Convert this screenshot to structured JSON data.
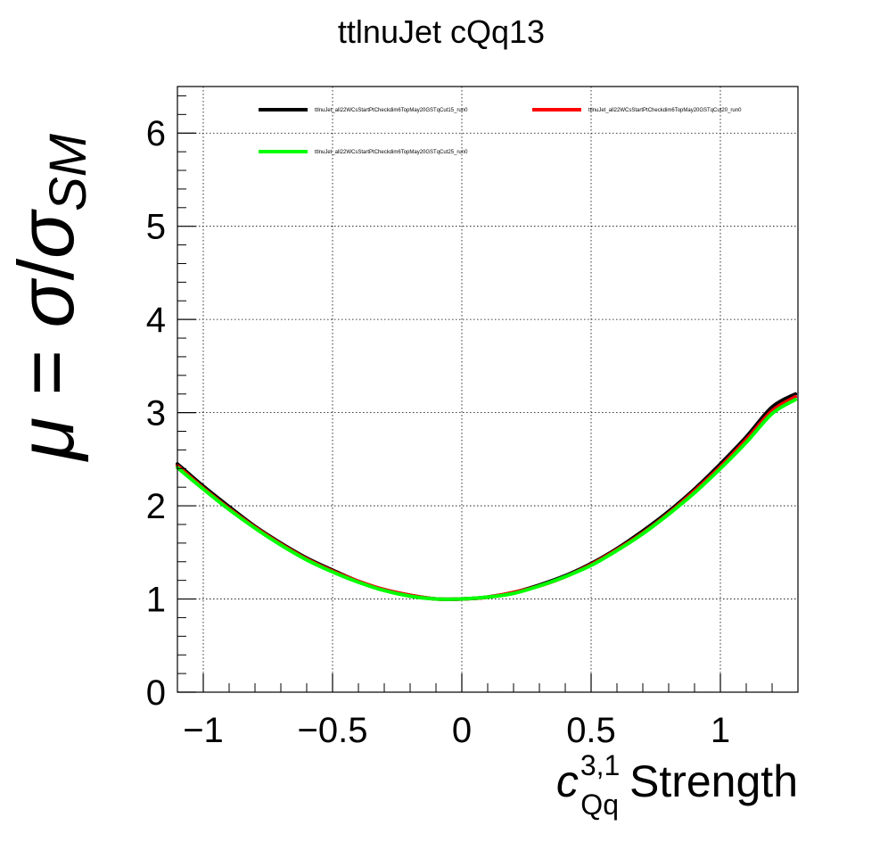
{
  "chart_data": {
    "type": "line",
    "title": "ttlnuJet cQq13",
    "xlabel": {
      "symbol": "c",
      "superscript": "3,1",
      "subscript": "Qq",
      "text": "Strength"
    },
    "ylabel": {
      "mu": "μ",
      "equals": " = ",
      "sigma": "σ",
      "slash": "/",
      "sigma_sm": "σ",
      "subscript": "SM"
    },
    "xlim": [
      -1.1,
      1.3
    ],
    "ylim": [
      0,
      6.5
    ],
    "x_ticks": [
      {
        "value": -1,
        "label": "−1"
      },
      {
        "value": -0.5,
        "label": "−0.5"
      },
      {
        "value": 0,
        "label": "0"
      },
      {
        "value": 0.5,
        "label": "0.5"
      },
      {
        "value": 1,
        "label": "1"
      }
    ],
    "y_ticks": [
      {
        "value": 0,
        "label": "0"
      },
      {
        "value": 1,
        "label": "1"
      },
      {
        "value": 2,
        "label": "2"
      },
      {
        "value": 3,
        "label": "3"
      },
      {
        "value": 4,
        "label": "4"
      },
      {
        "value": 5,
        "label": "5"
      },
      {
        "value": 6,
        "label": "6"
      }
    ],
    "grid": true,
    "legend_position": "top",
    "series": [
      {
        "name": "ttlnuJet_all22WCsStartPtCheckdim6TopMay20GSTqCut15_run0",
        "color": "#000000",
        "x": [
          -1.1,
          -1.0,
          -0.9,
          -0.8,
          -0.7,
          -0.6,
          -0.5,
          -0.4,
          -0.3,
          -0.2,
          -0.1,
          0.0,
          0.1,
          0.2,
          0.3,
          0.4,
          0.5,
          0.6,
          0.7,
          0.8,
          0.9,
          1.0,
          1.1,
          1.2,
          1.29
        ],
        "y": [
          2.45,
          2.21,
          1.99,
          1.78,
          1.6,
          1.44,
          1.31,
          1.19,
          1.1,
          1.04,
          1.0,
          1.0,
          1.02,
          1.07,
          1.15,
          1.25,
          1.38,
          1.54,
          1.73,
          1.94,
          2.18,
          2.45,
          2.74,
          3.06,
          3.2
        ]
      },
      {
        "name": "ttlnuJet_all22WCsStartPtCheckdim6TopMay20GSTqCut20_run0",
        "color": "#ff0000",
        "x": [
          -1.1,
          -1.0,
          -0.9,
          -0.8,
          -0.7,
          -0.6,
          -0.5,
          -0.4,
          -0.3,
          -0.2,
          -0.1,
          0.0,
          0.1,
          0.2,
          0.3,
          0.4,
          0.5,
          0.6,
          0.7,
          0.8,
          0.9,
          1.0,
          1.1,
          1.2,
          1.29
        ],
        "y": [
          2.43,
          2.19,
          1.97,
          1.77,
          1.59,
          1.43,
          1.3,
          1.19,
          1.1,
          1.04,
          1.0,
          1.0,
          1.02,
          1.07,
          1.14,
          1.24,
          1.37,
          1.53,
          1.71,
          1.92,
          2.16,
          2.42,
          2.71,
          3.02,
          3.17
        ]
      },
      {
        "name": "ttlnuJet_all22WCsStartPtCheckdim6TopMay20GSTqCut25_run0",
        "color": "#00ff00",
        "x": [
          -1.1,
          -1.0,
          -0.9,
          -0.8,
          -0.7,
          -0.6,
          -0.5,
          -0.4,
          -0.3,
          -0.2,
          -0.1,
          0.0,
          0.1,
          0.2,
          0.3,
          0.4,
          0.5,
          0.6,
          0.7,
          0.8,
          0.9,
          1.0,
          1.1,
          1.2,
          1.29
        ],
        "y": [
          2.41,
          2.18,
          1.96,
          1.76,
          1.58,
          1.42,
          1.29,
          1.18,
          1.09,
          1.03,
          1.0,
          1.0,
          1.02,
          1.06,
          1.14,
          1.24,
          1.36,
          1.52,
          1.7,
          1.91,
          2.14,
          2.4,
          2.68,
          2.99,
          3.14
        ]
      }
    ]
  }
}
